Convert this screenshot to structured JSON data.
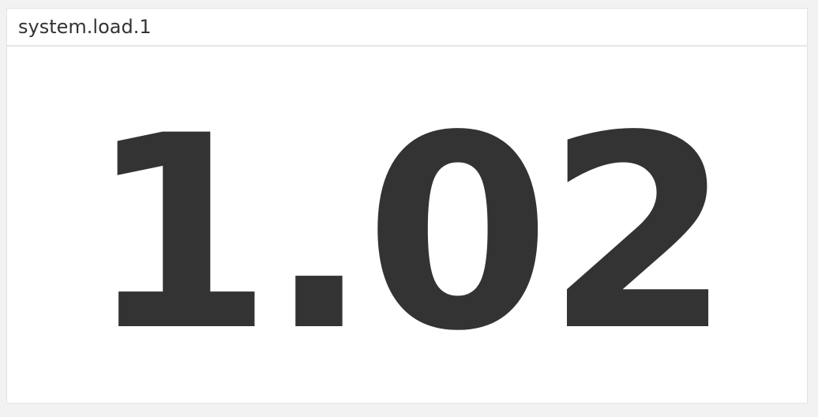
{
  "widget": {
    "title": "system.load.1",
    "value": "1.02"
  },
  "colors": {
    "page_background": "#f2f2f2",
    "panel_background": "#ffffff",
    "text": "#333333",
    "divider": "#e6e6e6"
  }
}
